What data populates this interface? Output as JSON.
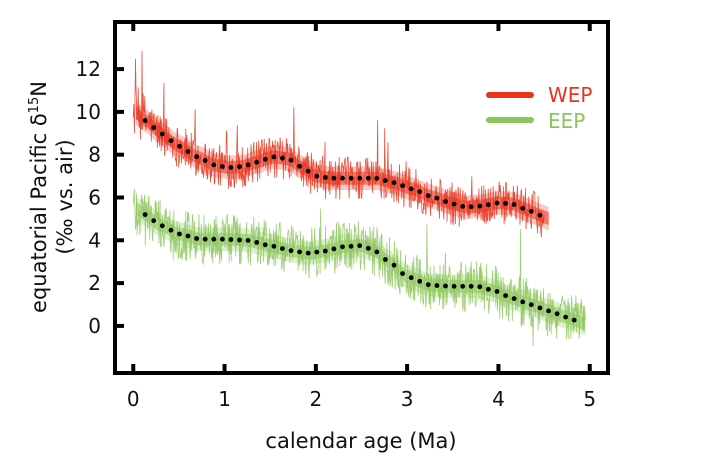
{
  "chart_data": {
    "type": "line",
    "title": "",
    "xlabel": "calendar age (Ma)",
    "ylabel_line1": "equatorial Pacific δ",
    "ylabel_sup": "15",
    "ylabel_line1_end": "N",
    "ylabel_line2": "(‰ vs. air)",
    "xlim": [
      -0.2,
      5.2
    ],
    "ylim": [
      -2.2,
      14.2
    ],
    "xticks": [
      0,
      1,
      2,
      3,
      4,
      5
    ],
    "xtick_labels": [
      "0",
      "1",
      "2",
      "3",
      "4",
      "5"
    ],
    "yticks": [
      0,
      2,
      4,
      6,
      8,
      10,
      12
    ],
    "ytick_labels": [
      "0",
      "2",
      "4",
      "6",
      "8",
      "10",
      "12"
    ],
    "grid": false,
    "legend_position": "top-right",
    "series": [
      {
        "name": "WEP",
        "color": "#e8341c",
        "band_color": "#f4a6a0",
        "raw_range": [
          0.0,
          4.5
        ],
        "raw_noise": 1.0,
        "trend": {
          "x": [
            0.13,
            0.3,
            0.5,
            0.7,
            0.9,
            1.05,
            1.2,
            1.35,
            1.53,
            1.7,
            1.85,
            2.0,
            2.17,
            2.4,
            2.66,
            2.85,
            3.05,
            3.3,
            3.5,
            3.65,
            3.8,
            4.0,
            4.15,
            4.3,
            4.47
          ],
          "y": [
            9.6,
            9.0,
            8.4,
            7.9,
            7.5,
            7.4,
            7.45,
            7.65,
            7.9,
            7.8,
            7.4,
            7.0,
            6.9,
            6.9,
            6.9,
            6.7,
            6.4,
            6.0,
            5.7,
            5.55,
            5.6,
            5.75,
            5.7,
            5.45,
            5.15
          ]
        }
      },
      {
        "name": "EEP",
        "color": "#8cc65b",
        "band_color": "#c9e6b0",
        "raw_range": [
          0.0,
          4.95
        ],
        "raw_noise": 1.2,
        "trend": {
          "x": [
            0.13,
            0.3,
            0.5,
            0.74,
            1.0,
            1.25,
            1.5,
            1.75,
            1.92,
            2.1,
            2.3,
            2.5,
            2.65,
            2.8,
            3.0,
            3.26,
            3.5,
            3.77,
            3.95,
            4.15,
            4.35,
            4.55,
            4.75,
            4.88
          ],
          "y": [
            5.2,
            4.7,
            4.3,
            4.05,
            4.05,
            4.0,
            3.75,
            3.5,
            3.4,
            3.5,
            3.7,
            3.75,
            3.5,
            3.0,
            2.3,
            1.9,
            1.85,
            1.85,
            1.65,
            1.3,
            1.0,
            0.7,
            0.4,
            0.2
          ]
        }
      }
    ]
  }
}
